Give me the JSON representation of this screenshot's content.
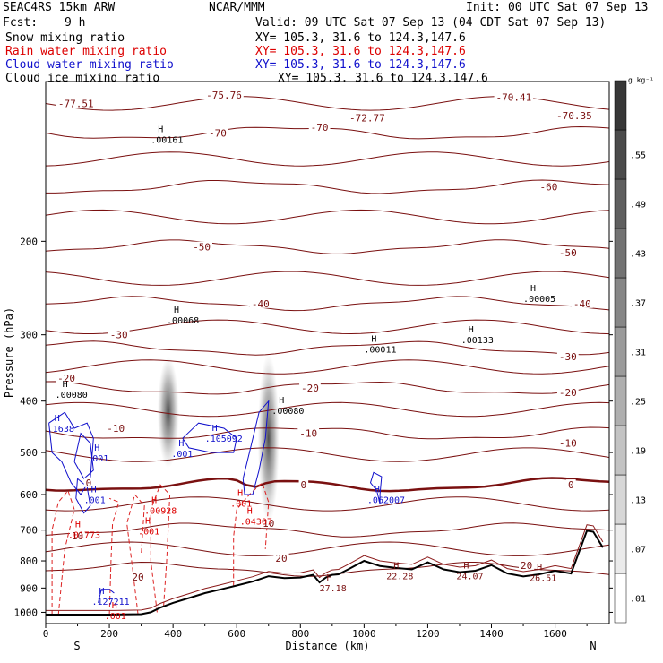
{
  "header": {
    "model": "SEAC4RS 15km ARW",
    "center": "NCAR/MMM",
    "init": "Init: 00 UTC Sat 07 Sep 13",
    "fcst_label": "Fcst:",
    "fcst_value": "9 h",
    "valid": "Valid: 09 UTC Sat 07 Sep 13 (04 CDT Sat 07 Sep 13)"
  },
  "legend": [
    {
      "label": "Snow mixing ratio",
      "xy": "XY= 105.3, 31.6 to 124.3,147.6",
      "color": "#000000"
    },
    {
      "label": "Rain water mixing ratio",
      "xy": "XY= 105.3, 31.6 to 124.3,147.6",
      "color": "#dd0000"
    },
    {
      "label": "Cloud water mixing ratio",
      "xy": "XY= 105.3, 31.6 to 124.3,147.6",
      "color": "#1010cc"
    },
    {
      "label": "Cloud ice mixing ratio",
      "xy": "XY= 105.3, 31.6 to 124.3,147.6",
      "color": "#000000"
    }
  ],
  "colorbar": {
    "unit": "g kg⁻¹",
    "levels": [
      ".01",
      ".07",
      ".13",
      ".19",
      ".25",
      ".31",
      ".37",
      ".43",
      ".49",
      ".55"
    ]
  },
  "chart_data": {
    "type": "cross-section",
    "xlabel": "Distance (km)",
    "ylabel": "Pressure (hPa)",
    "xlim": [
      0,
      1770
    ],
    "ylim": [
      1050,
      100
    ],
    "y_log_scale": true,
    "xticks": [
      0,
      200,
      400,
      600,
      800,
      1000,
      1200,
      1400,
      1600
    ],
    "yticks": [
      200,
      300,
      400,
      500,
      600,
      700,
      800,
      900,
      1000
    ],
    "endpoints": {
      "left": "S",
      "right": "N"
    },
    "temperature_contours": [
      {
        "label": "-70",
        "pressure": 125
      },
      {
        "label": "-60",
        "pressure": 158
      },
      {
        "label": "-50",
        "pressure": 205
      },
      {
        "label": "-40",
        "pressure": 262
      },
      {
        "label": "-30",
        "pressure": 318
      },
      {
        "label": "-20",
        "pressure": 378
      },
      {
        "label": "-10",
        "pressure": 460
      },
      {
        "label": "0",
        "pressure": 575
      },
      {
        "label": "10",
        "pressure": 700
      },
      {
        "label": "20",
        "pressure": 830
      }
    ],
    "temperature_labels": [
      {
        "text": "-75.76",
        "x": 560,
        "p": 106
      },
      {
        "text": "-72.77",
        "x": 1010,
        "p": 117
      },
      {
        "text": "-70.41",
        "x": 1470,
        "p": 107
      },
      {
        "text": "-77.51",
        "x": 95,
        "p": 110
      },
      {
        "text": "-70.35",
        "x": 1660,
        "p": 116
      },
      {
        "text": "-70",
        "x": 540,
        "p": 125
      },
      {
        "text": "-70",
        "x": 860,
        "p": 122
      },
      {
        "text": "-60",
        "x": 1580,
        "p": 158
      },
      {
        "text": "-50",
        "x": 490,
        "p": 205
      },
      {
        "text": "-50",
        "x": 1640,
        "p": 210
      },
      {
        "text": "-40",
        "x": 675,
        "p": 262
      },
      {
        "text": "-40",
        "x": 1685,
        "p": 262
      },
      {
        "text": "-30",
        "x": 230,
        "p": 300
      },
      {
        "text": "-30",
        "x": 1640,
        "p": 330
      },
      {
        "text": "-20",
        "x": 65,
        "p": 362
      },
      {
        "text": "-20",
        "x": 830,
        "p": 378
      },
      {
        "text": "-20",
        "x": 1640,
        "p": 385
      },
      {
        "text": "-10",
        "x": 220,
        "p": 450
      },
      {
        "text": "-10",
        "x": 825,
        "p": 460
      },
      {
        "text": "-10",
        "x": 1640,
        "p": 480
      },
      {
        "text": "0",
        "x": 135,
        "p": 570
      },
      {
        "text": "0",
        "x": 810,
        "p": 575
      },
      {
        "text": "0",
        "x": 1650,
        "p": 575
      },
      {
        "text": "10",
        "x": 100,
        "p": 718
      },
      {
        "text": "10",
        "x": 700,
        "p": 680
      },
      {
        "text": "20",
        "x": 740,
        "p": 790
      },
      {
        "text": "20",
        "x": 1510,
        "p": 815
      },
      {
        "text": "20",
        "x": 290,
        "p": 858
      }
    ],
    "maxima": [
      {
        "type": "snow",
        "value": ".00161",
        "x": 330,
        "p": 128
      },
      {
        "type": "snow",
        "value": ".00068",
        "x": 380,
        "p": 280
      },
      {
        "type": "snow",
        "value": ".00080",
        "x": 30,
        "p": 387
      },
      {
        "type": "snow",
        "value": ".00080",
        "x": 710,
        "p": 415
      },
      {
        "type": "snow",
        "value": ".00011",
        "x": 1000,
        "p": 318
      },
      {
        "type": "snow",
        "value": ".00133",
        "x": 1305,
        "p": 305
      },
      {
        "type": "snow",
        "value": ".00005",
        "x": 1500,
        "p": 255
      },
      {
        "type": "cloud_water",
        "value": ".1638",
        "x": 5,
        "p": 448
      },
      {
        "type": "cloud_water",
        "value": ".105092",
        "x": 500,
        "p": 468
      },
      {
        "type": "cloud_water",
        "value": ".001",
        "x": 395,
        "p": 500
      },
      {
        "type": "cloud_water",
        "value": ".001",
        "x": 130,
        "p": 510
      },
      {
        "type": "cloud_water",
        "value": ".001",
        "x": 120,
        "p": 610
      },
      {
        "type": "cloud_water",
        "value": ".062007",
        "x": 1010,
        "p": 610
      },
      {
        "type": "cloud_water",
        "value": ".127211",
        "x": 145,
        "p": 950
      },
      {
        "type": "rain",
        "value": ".00928",
        "x": 310,
        "p": 640
      },
      {
        "type": "rain",
        "value": ".001",
        "x": 580,
        "p": 620
      },
      {
        "type": "rain",
        "value": ".04307",
        "x": 610,
        "p": 670
      },
      {
        "type": "rain",
        "value": ".01773",
        "x": 70,
        "p": 710
      },
      {
        "type": "rain",
        "value": ".001",
        "x": 290,
        "p": 700
      },
      {
        "type": "rain",
        "value": ".001",
        "x": 185,
        "p": 1010
      },
      {
        "type": "temperature",
        "value": "27.18",
        "x": 860,
        "p": 895
      },
      {
        "type": "temperature",
        "value": "22.28",
        "x": 1070,
        "p": 850
      },
      {
        "type": "temperature",
        "value": "24.07",
        "x": 1290,
        "p": 850
      },
      {
        "type": "temperature",
        "value": "26.51",
        "x": 1520,
        "p": 857
      }
    ]
  }
}
